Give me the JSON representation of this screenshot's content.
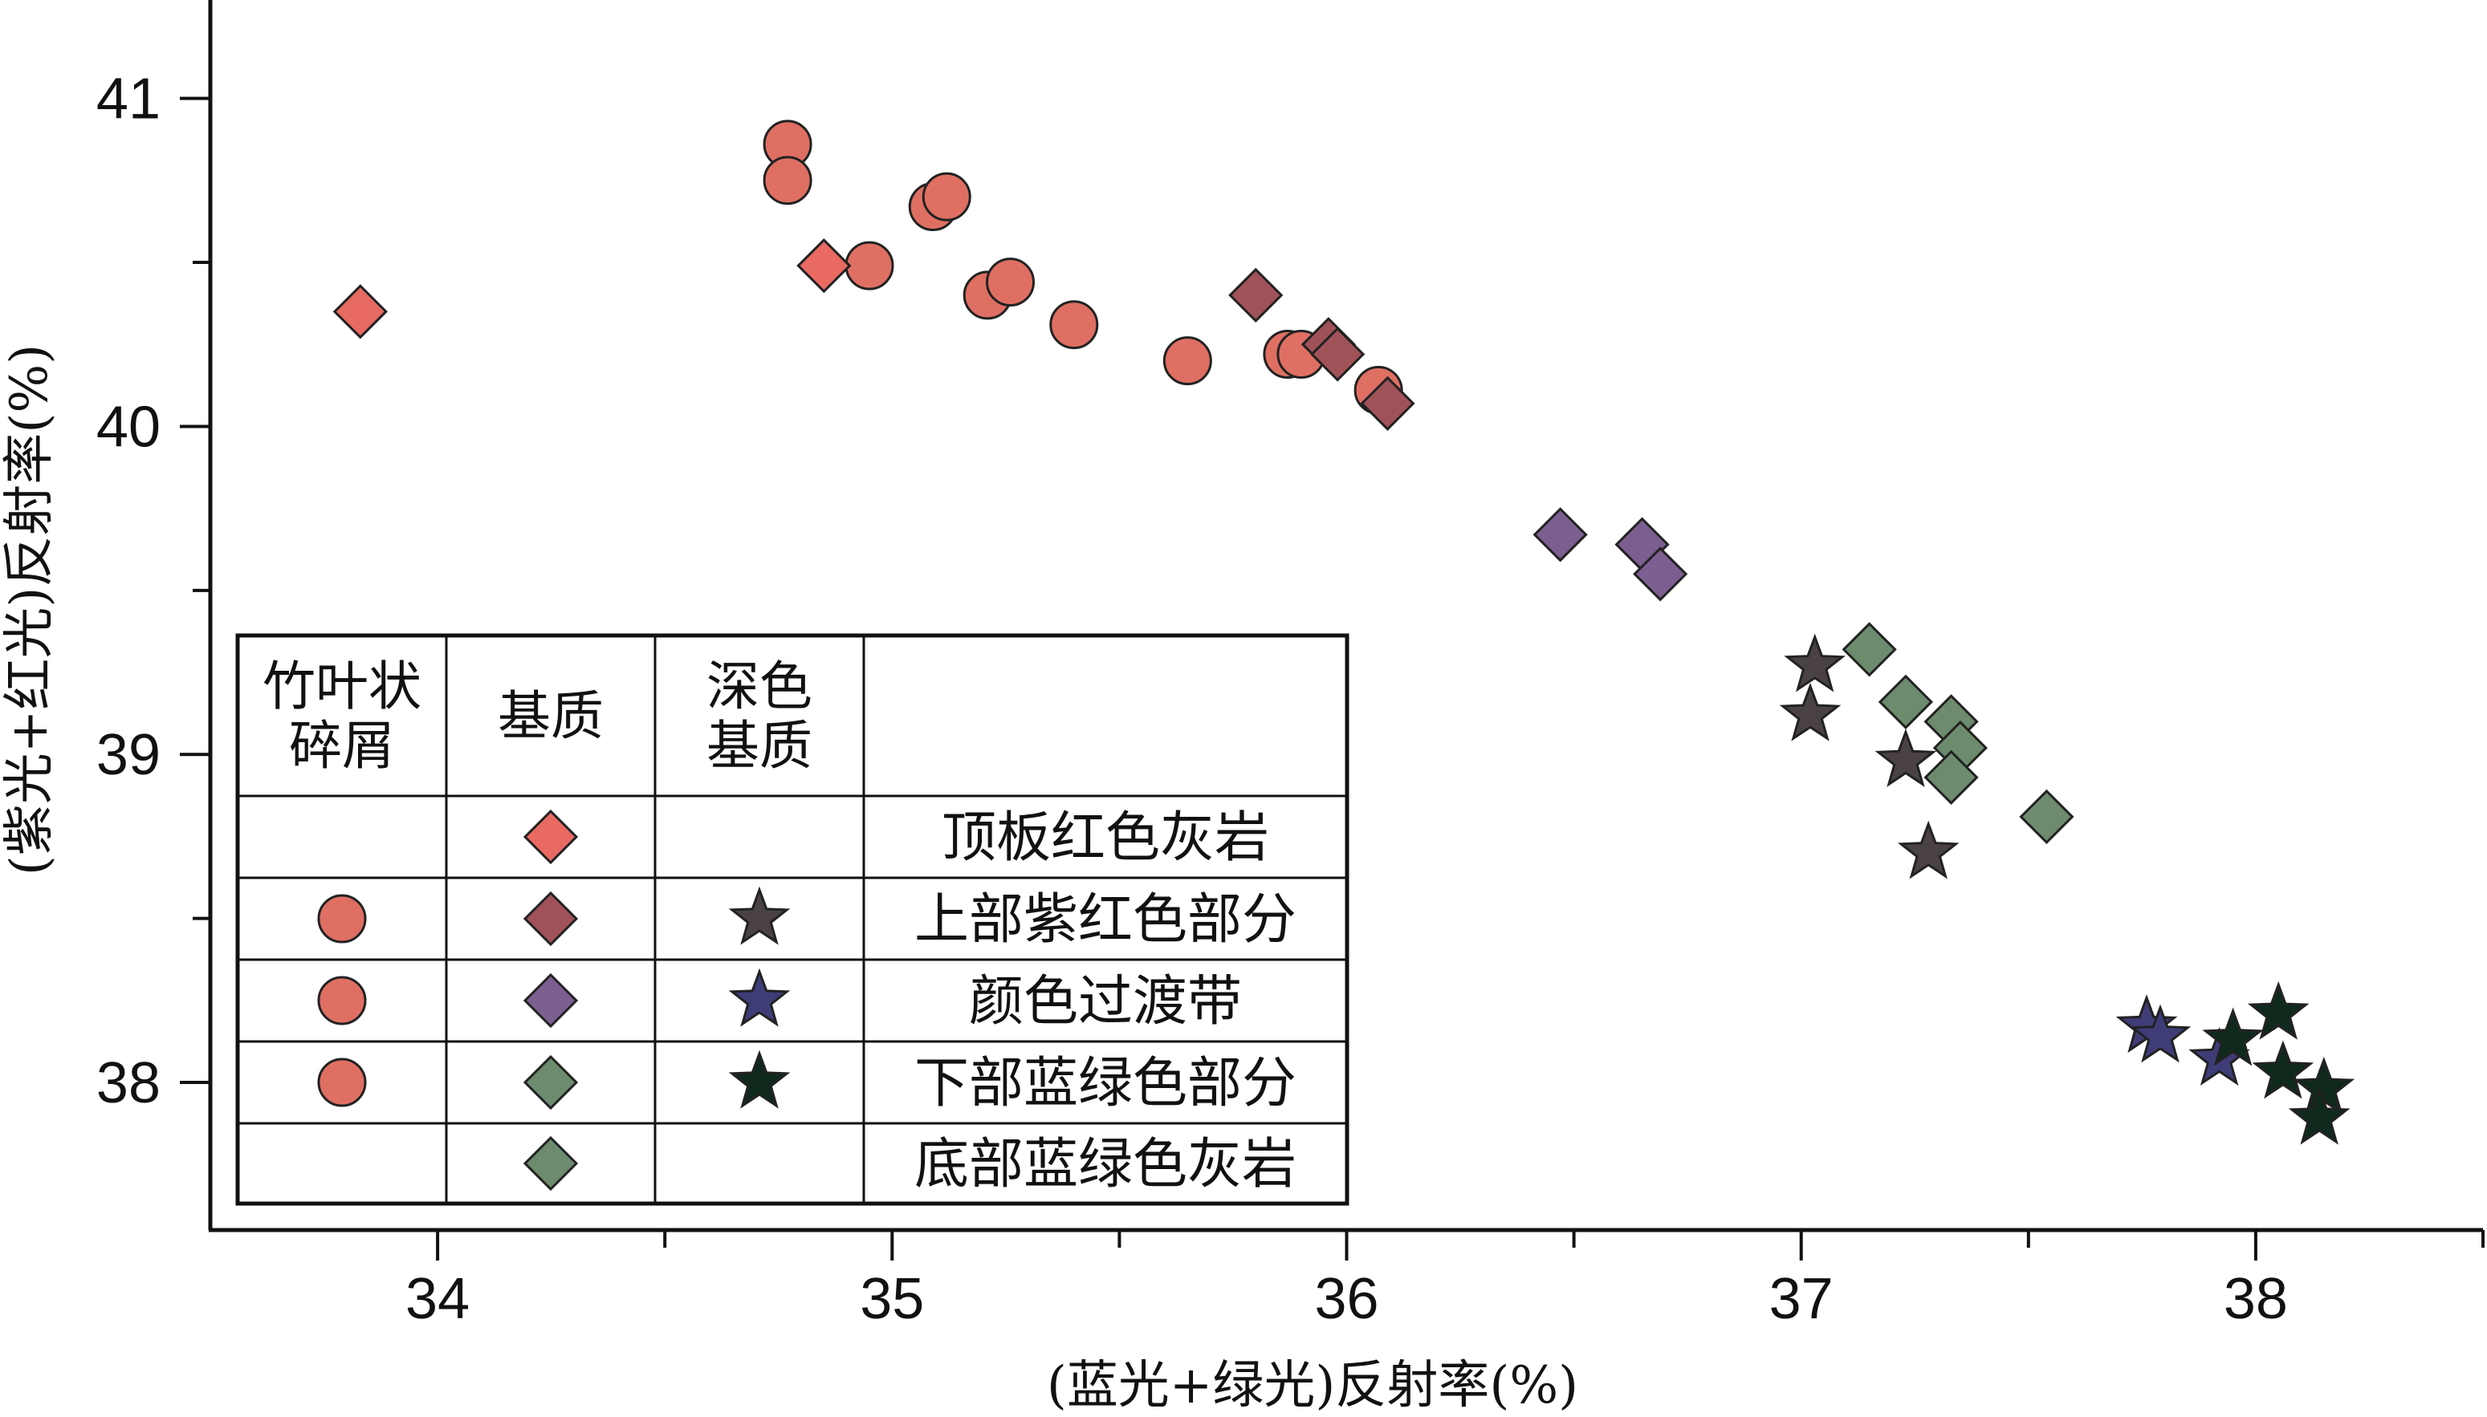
{
  "chart_data": {
    "type": "scatter",
    "xlabel": "(蓝光+绿光)反射率(%)",
    "ylabel": "(紫光+红光)反射率(%)",
    "xlim": [
      33.5,
      38.5
    ],
    "ylim": [
      37.55,
      41.3
    ],
    "x_ticks": [
      34,
      35,
      36,
      37,
      38
    ],
    "y_ticks": [
      38,
      39,
      40,
      41
    ],
    "grid": false,
    "legend_placement": "bottom-left",
    "legend_table": {
      "headers": [
        "竹叶状碎屑",
        "基质",
        "深色基质"
      ],
      "rows": [
        {
          "label": "顶板红色灰岩",
          "symbols": [
            null,
            "diamond",
            null
          ]
        },
        {
          "label": "上部紫红色部分",
          "symbols": [
            "circle",
            "diamond",
            "star"
          ]
        },
        {
          "label": "颜色过渡带",
          "symbols": [
            "circle",
            "diamond",
            "star"
          ]
        },
        {
          "label": "下部蓝绿色部分",
          "symbols": [
            "circle",
            "diamond",
            "star"
          ]
        },
        {
          "label": "底部蓝绿色灰岩",
          "symbols": [
            null,
            "diamond",
            null
          ]
        }
      ]
    },
    "colors": {
      "clast_circle": "#e06f63",
      "top_red_diamond": "#e86a62",
      "upper_diamond": "#a05258",
      "transition_diamond": "#7d5e91",
      "lower_diamond": "#6d8b6e",
      "bottom_diamond": "#6d8b6e",
      "upper_star": "#4a4242",
      "transition_star": "#3e3d78",
      "lower_star": "#0f2a1c"
    },
    "series": [
      {
        "shape": "circle",
        "color": "#e06f63",
        "points": [
          [
            34.77,
            40.86
          ],
          [
            34.77,
            40.75
          ],
          [
            35.09,
            40.67
          ],
          [
            35.12,
            40.7
          ],
          [
            34.95,
            40.49
          ],
          [
            35.21,
            40.4
          ],
          [
            35.26,
            40.44
          ],
          [
            35.4,
            40.31
          ],
          [
            35.65,
            40.2
          ],
          [
            35.87,
            40.22
          ],
          [
            35.9,
            40.22
          ],
          [
            36.07,
            40.11
          ]
        ]
      },
      {
        "shape": "diamond",
        "color": "#e86a62",
        "points": [
          [
            33.83,
            40.35
          ],
          [
            34.85,
            40.49
          ]
        ]
      },
      {
        "shape": "diamond",
        "color": "#a05258",
        "points": [
          [
            35.8,
            40.4
          ],
          [
            35.96,
            40.25
          ],
          [
            35.98,
            40.22
          ],
          [
            36.09,
            40.07
          ]
        ]
      },
      {
        "shape": "diamond",
        "color": "#7d5e91",
        "points": [
          [
            36.47,
            39.67
          ],
          [
            36.65,
            39.64
          ],
          [
            36.69,
            39.55
          ]
        ]
      },
      {
        "shape": "diamond",
        "color": "#6d8b6e",
        "points": [
          [
            37.15,
            39.32
          ],
          [
            37.23,
            39.16
          ],
          [
            37.33,
            39.1
          ],
          [
            37.35,
            39.02
          ],
          [
            37.33,
            38.93
          ],
          [
            37.54,
            38.81
          ]
        ]
      },
      {
        "shape": "star",
        "color": "#4a4242",
        "points": [
          [
            37.03,
            39.27
          ],
          [
            37.02,
            39.12
          ],
          [
            37.23,
            38.98
          ],
          [
            37.28,
            38.7
          ]
        ]
      },
      {
        "shape": "star",
        "color": "#3e3d78",
        "points": [
          [
            37.76,
            38.17
          ],
          [
            37.79,
            38.14
          ],
          [
            37.92,
            38.07
          ]
        ]
      },
      {
        "shape": "star",
        "color": "#0f2a1c",
        "points": [
          [
            37.95,
            38.13
          ],
          [
            38.05,
            38.21
          ],
          [
            38.06,
            38.03
          ],
          [
            38.15,
            37.98
          ],
          [
            38.14,
            37.89
          ]
        ]
      }
    ]
  }
}
